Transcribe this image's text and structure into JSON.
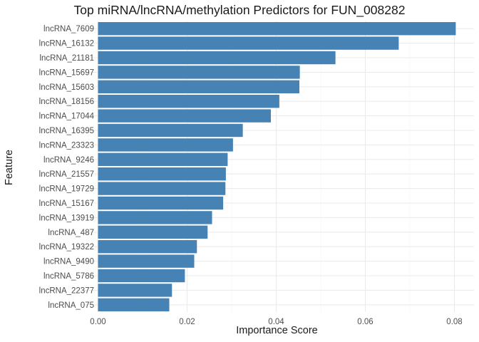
{
  "chart_data": {
    "type": "bar",
    "orientation": "horizontal",
    "title": "Top miRNA/lncRNA/methylation Predictors for FUN_008282",
    "xlabel": "Importance Score",
    "ylabel": "Feature",
    "xlim": [
      0,
      0.0815
    ],
    "xticks": [
      0.0,
      0.02,
      0.04,
      0.06,
      0.08
    ],
    "xtick_labels": [
      "0.00",
      "0.02",
      "0.04",
      "0.06",
      "0.08"
    ],
    "bar_color": "#4682B4",
    "grid": true,
    "categories": [
      "lncRNA_7609",
      "lncRNA_16132",
      "lncRNA_21181",
      "lncRNA_15697",
      "lncRNA_15603",
      "lncRNA_18156",
      "lncRNA_17044",
      "lncRNA_16395",
      "lncRNA_23323",
      "lncRNA_9246",
      "lncRNA_21557",
      "lncRNA_19729",
      "lncRNA_15167",
      "lncRNA_13919",
      "lncRNA_487",
      "lncRNA_19322",
      "lncRNA_9490",
      "lncRNA_5786",
      "lncRNA_22377",
      "lncRNA_075"
    ],
    "values": [
      0.0803,
      0.0675,
      0.0533,
      0.0453,
      0.0452,
      0.0407,
      0.0388,
      0.0325,
      0.0303,
      0.0291,
      0.0287,
      0.0286,
      0.0281,
      0.0256,
      0.0246,
      0.0222,
      0.0216,
      0.0195,
      0.0166,
      0.016
    ]
  }
}
